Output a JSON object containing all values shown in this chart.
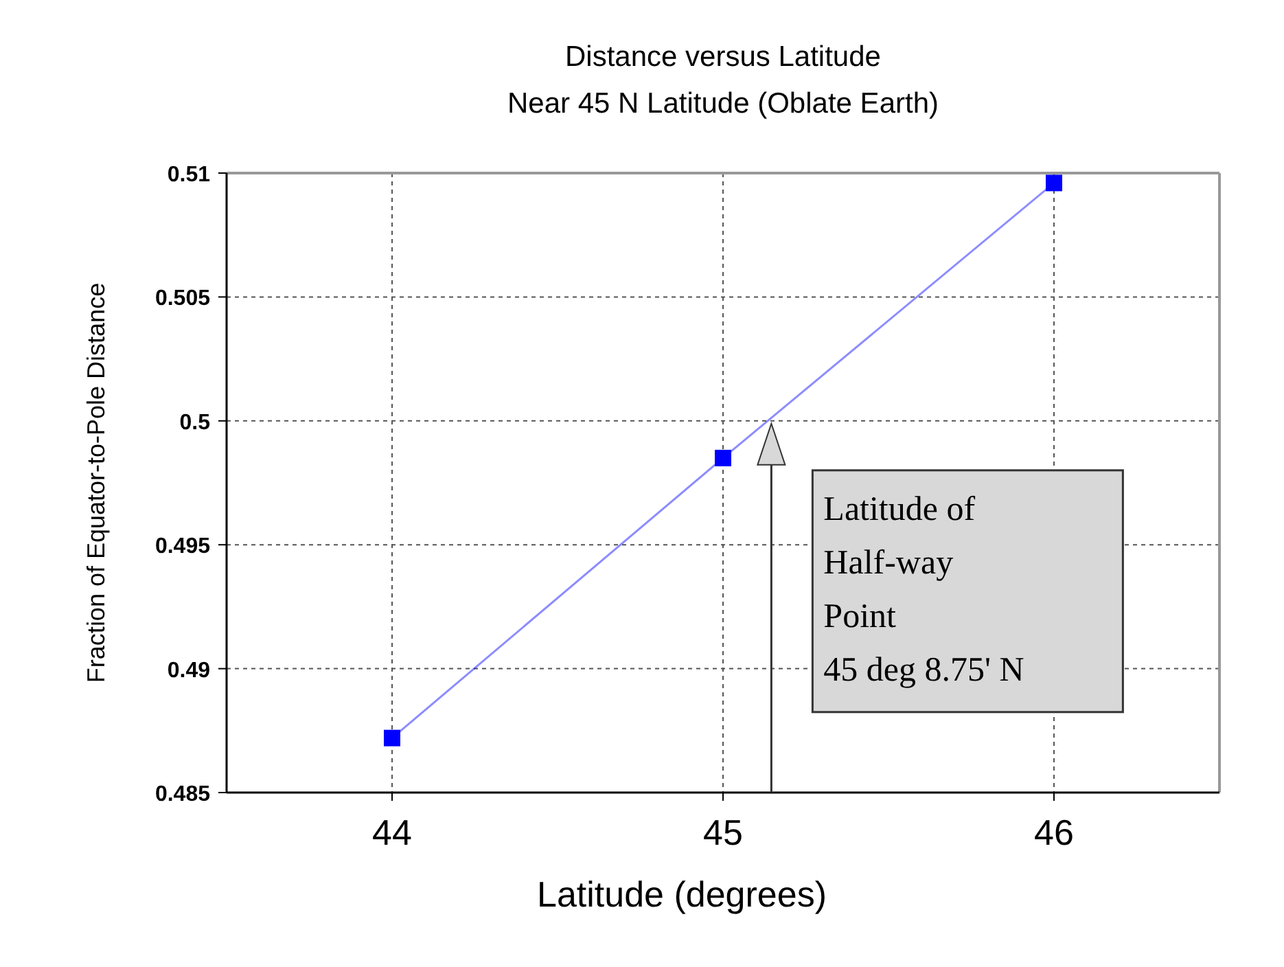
{
  "chart_data": {
    "type": "line",
    "title": "Distance versus Latitude",
    "subtitle": "Near 45 N Latitude (Oblate Earth)",
    "xlabel": "Latitude (degrees)",
    "ylabel": "Fraction of Equator-to-Pole Distance",
    "x": [
      44,
      45,
      46
    ],
    "series": [
      {
        "color": "#0000ff",
        "values": [
          0.4872,
          0.4985,
          0.5096
        ]
      }
    ],
    "xlim": [
      43.5,
      46.5
    ],
    "xticks": [
      44,
      45,
      46
    ],
    "ylim": [
      0.485,
      0.51
    ],
    "yticks": [
      0.485,
      0.49,
      0.495,
      0.5,
      0.505,
      0.51
    ],
    "grid": true,
    "marker": "square",
    "line_style": "solid",
    "annotations": [
      {
        "text": "Latitude of\nHalf-way\nPoint\n45 deg 8.75' N",
        "x": 45.146,
        "y": 0.5
      }
    ]
  }
}
